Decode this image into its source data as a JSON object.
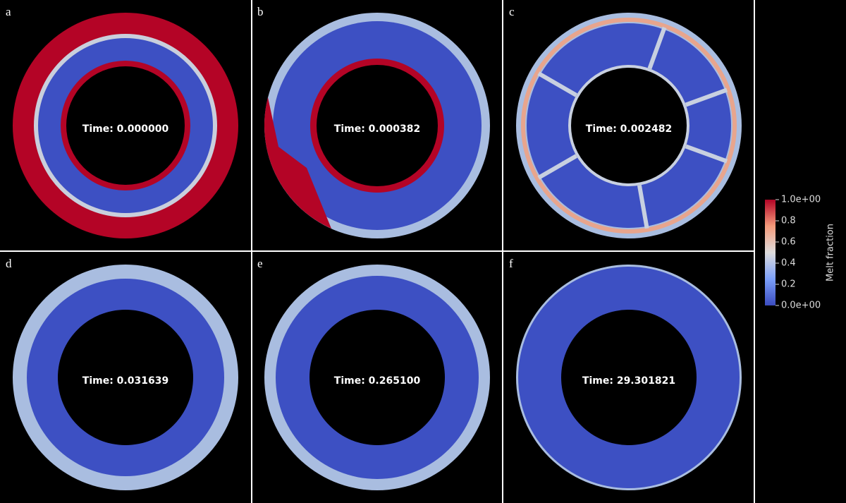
{
  "panels": [
    {
      "label": "a",
      "time": "Time: 0.000000"
    },
    {
      "label": "b",
      "time": "Time: 0.000382"
    },
    {
      "label": "c",
      "time": "Time: 0.002482"
    },
    {
      "label": "d",
      "time": "Time: 0.031639"
    },
    {
      "label": "e",
      "time": "Time: 0.265100"
    },
    {
      "label": "f",
      "time": "Time: 29.301821"
    }
  ],
  "colorbar": {
    "title": "Melt fraction",
    "lim": [
      0,
      1
    ],
    "ticks": [
      {
        "value": 1,
        "label": "1.0e+00"
      },
      0.8,
      0.6,
      0.4,
      0.2,
      {
        "value": 0,
        "label": "0.0e+00"
      }
    ]
  }
}
